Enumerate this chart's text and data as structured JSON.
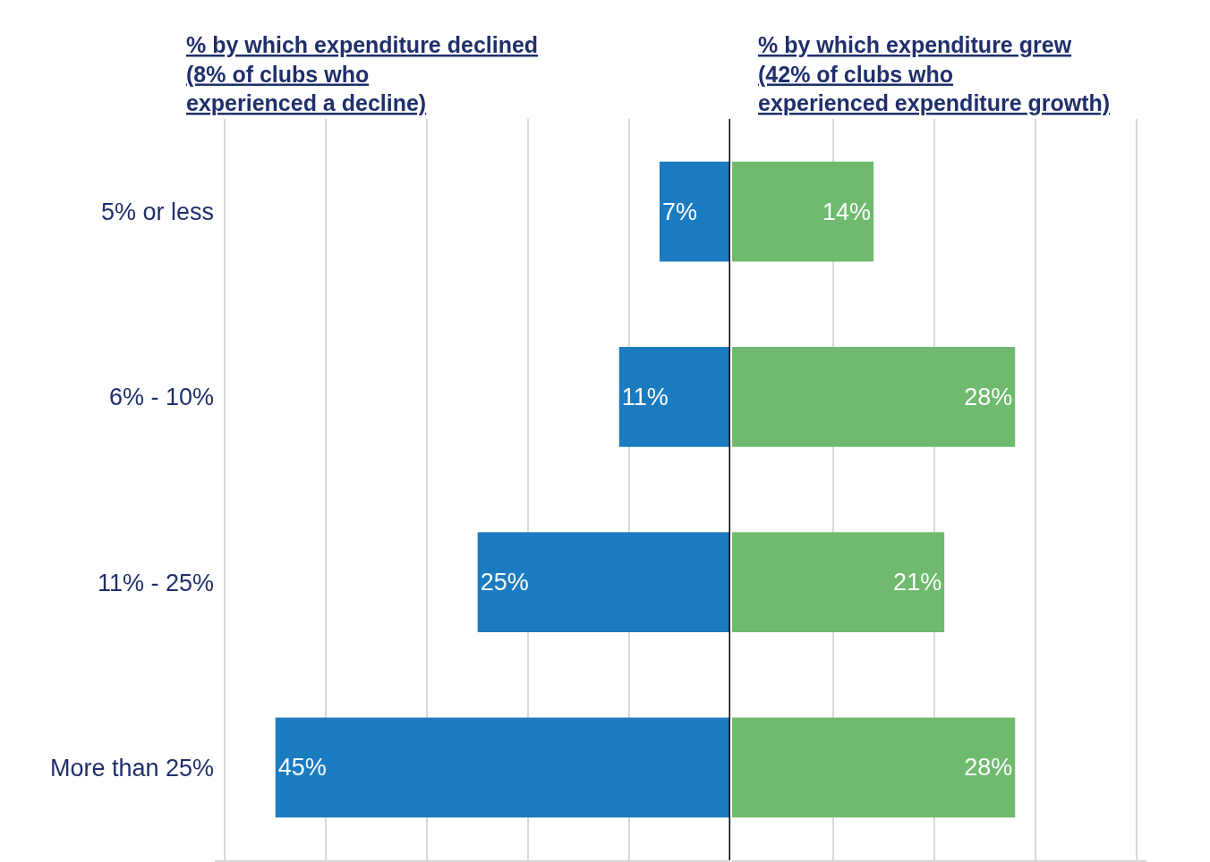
{
  "chart_data": [
    {
      "type": "bar",
      "orientation": "horizontal",
      "title": "% by which expenditure declined (8% of clubs who experienced a decline)",
      "categories": [
        "5% or less",
        "6% - 10%",
        "11% - 25%",
        "More than 25%"
      ],
      "series": [
        {
          "color": "#1b7bc1",
          "values": [
            7,
            11,
            25,
            45
          ],
          "value_labels": [
            "7%",
            "11%",
            "25%",
            "45%"
          ]
        }
      ],
      "xlim": [
        51,
        0
      ],
      "xticks": [
        {
          "value": 50,
          "label": null
        },
        {
          "value": 40,
          "label": null
        },
        {
          "value": 30,
          "label": null
        },
        {
          "value": 20,
          "label": null
        },
        {
          "value": 10,
          "label": null
        },
        {
          "value": 0,
          "label": null
        }
      ],
      "grid": "x",
      "tick_labels": "y",
      "ref_lines": [
        {
          "axis": "x",
          "value": 0,
          "color": "#000000"
        }
      ]
    },
    {
      "type": "bar",
      "orientation": "horizontal",
      "title": "% by which expenditure grew (42% of clubs who experienced expenditure growth)",
      "categories": [
        null,
        null,
        null,
        null
      ],
      "series": [
        {
          "color": "#6fba6e",
          "values": [
            14,
            28,
            21,
            28
          ],
          "value_labels": [
            "14%",
            "28%",
            "21%",
            "28%"
          ]
        }
      ],
      "xlim": [
        0,
        41
      ],
      "xticks": [
        {
          "value": 10,
          "label": null
        },
        {
          "value": 20,
          "label": null
        },
        {
          "value": 30,
          "label": null
        },
        {
          "value": 40,
          "label": null
        }
      ],
      "grid": "x",
      "tick_labels": false
    }
  ]
}
